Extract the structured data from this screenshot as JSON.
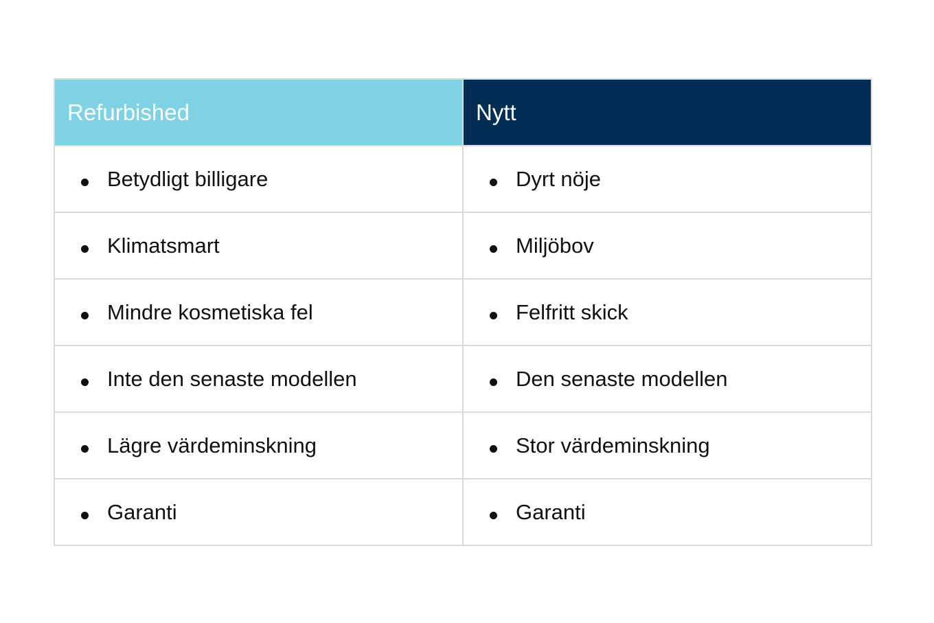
{
  "table": {
    "headers": [
      "Refurbished",
      "Nytt"
    ],
    "header_colors": [
      "#7fd1e4",
      "#022d55"
    ],
    "rows": [
      [
        "Betydligt billigare",
        "Dyrt nöje"
      ],
      [
        "Klimatsmart",
        "Miljöbov"
      ],
      [
        "Mindre kosmetiska fel",
        "Felfritt skick"
      ],
      [
        "Inte den senaste modellen",
        "Den senaste modellen"
      ],
      [
        "Lägre värdeminskning",
        "Stor värdeminskning"
      ],
      [
        "Garanti",
        "Garanti"
      ]
    ]
  }
}
